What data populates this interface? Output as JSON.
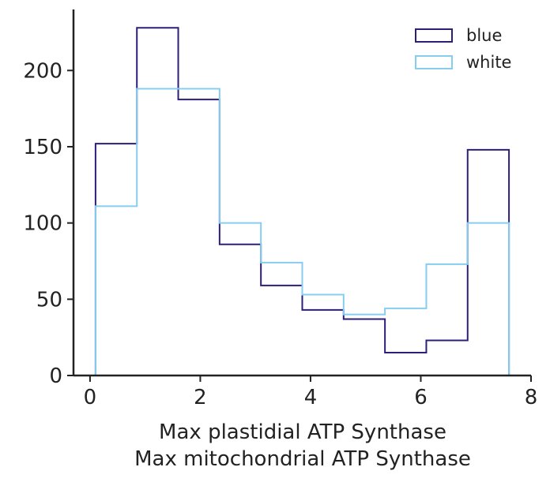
{
  "chart_data": {
    "type": "histogram",
    "title": "",
    "xlabel_lines": [
      "Max plastidial ATP Synthase",
      "Max mitochondrial ATP Synthase"
    ],
    "ylabel": "",
    "xlim": [
      -0.3,
      8
    ],
    "ylim": [
      0,
      240
    ],
    "xticks": [
      0,
      2,
      4,
      6,
      8
    ],
    "yticks": [
      0,
      50,
      100,
      150,
      200
    ],
    "grid": false,
    "legend_position": "top-right",
    "bin_edges": [
      0.1,
      0.85,
      1.6,
      2.35,
      3.1,
      3.85,
      4.6,
      5.35,
      6.1,
      6.85,
      7.6
    ],
    "series": [
      {
        "name": "blue",
        "color": "#2b1f7a",
        "histtype": "step",
        "values": [
          152,
          228,
          181,
          86,
          59,
          43,
          37,
          15,
          23,
          148
        ]
      },
      {
        "name": "white",
        "color": "#87cdf0",
        "histtype": "step",
        "values": [
          111,
          188,
          188,
          100,
          74,
          53,
          40,
          44,
          73,
          100
        ]
      }
    ]
  }
}
